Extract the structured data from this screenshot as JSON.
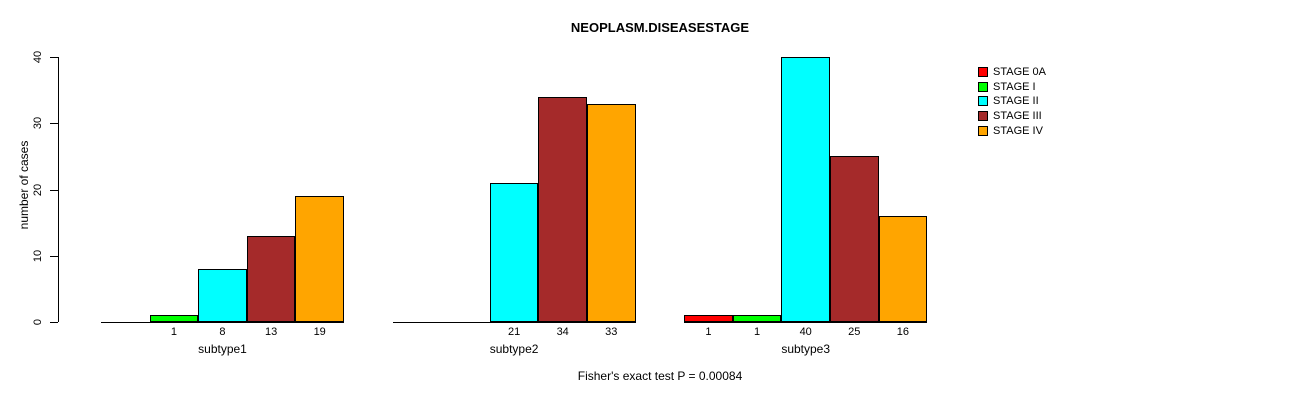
{
  "chart_data": {
    "type": "bar",
    "title": "NEOPLASM.DISEASESTAGE",
    "ylabel": "number of cases",
    "xlabel": "",
    "categories": [
      "subtype1",
      "subtype2",
      "subtype3"
    ],
    "series": [
      {
        "name": "STAGE 0A",
        "color": "#FF0000",
        "values": [
          0,
          0,
          1
        ]
      },
      {
        "name": "STAGE I",
        "color": "#00FF00",
        "values": [
          1,
          0,
          1
        ]
      },
      {
        "name": "STAGE II",
        "color": "#00FFFF",
        "values": [
          8,
          21,
          40
        ]
      },
      {
        "name": "STAGE III",
        "color": "#A52A2A",
        "values": [
          13,
          34,
          25
        ]
      },
      {
        "name": "STAGE IV",
        "color": "#FFA500",
        "values": [
          19,
          33,
          16
        ]
      }
    ],
    "yticks": [
      0,
      10,
      20,
      30,
      40
    ],
    "ylim": [
      0,
      40
    ],
    "grid": false,
    "legend_position": "top-right",
    "bar_value_labels": "shown under each bar when value > 0",
    "annotation": "Fisher's exact test P = 0.00084"
  }
}
